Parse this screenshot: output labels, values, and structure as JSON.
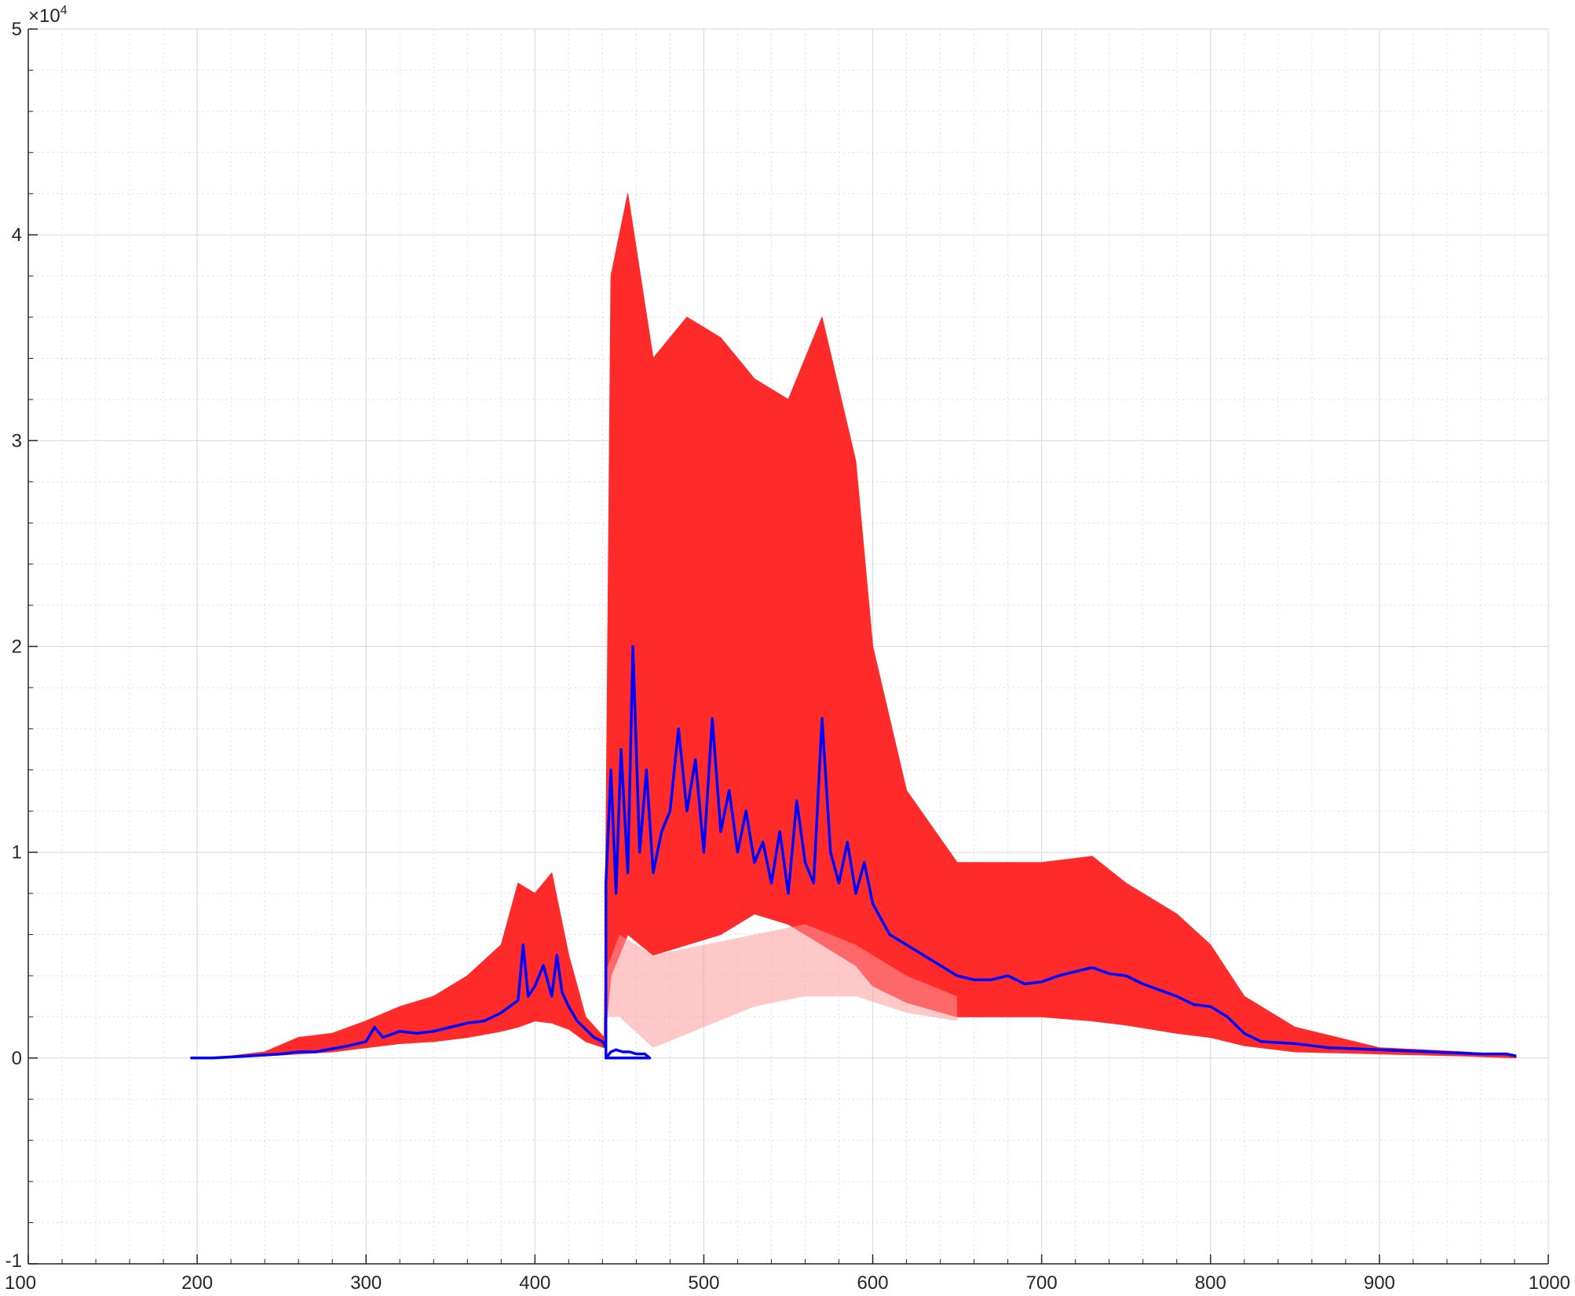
{
  "chart_data": {
    "type": "line",
    "title": "",
    "xlabel": "",
    "ylabel": "",
    "xlim": [
      100,
      1000
    ],
    "ylim": [
      -1,
      5
    ],
    "y_scale_exponent_label": "×10",
    "y_scale_exponent": "4",
    "x_ticks": [
      "100",
      "200",
      "300",
      "400",
      "500",
      "600",
      "700",
      "800",
      "900",
      "1000"
    ],
    "y_ticks": [
      "-1",
      "0",
      "1",
      "2",
      "3",
      "4",
      "5"
    ],
    "grid": true,
    "minor_grid": true,
    "legend": "none",
    "colors": {
      "envelope": "#ff2a2a",
      "envelope_faint": "#ff9a9a",
      "mean_line": "#0000ff",
      "grid": "#dcdcdc",
      "axis": "#262626"
    },
    "series": [
      {
        "kind": "envelope",
        "x": [
          196,
          220,
          240,
          260,
          280,
          300,
          320,
          340,
          360,
          380,
          390,
          400,
          410,
          420,
          430,
          441,
          445,
          455,
          470,
          490,
          510,
          530,
          550,
          570,
          590,
          600,
          620,
          650,
          700,
          730,
          750,
          780,
          800,
          820,
          850,
          900,
          950,
          981
        ],
        "lower": [
          0.0,
          0.0,
          0.01,
          0.02,
          0.03,
          0.05,
          0.07,
          0.08,
          0.1,
          0.13,
          0.15,
          0.18,
          0.17,
          0.14,
          0.08,
          0.05,
          0.4,
          0.6,
          0.5,
          0.55,
          0.6,
          0.7,
          0.65,
          0.55,
          0.45,
          0.35,
          0.27,
          0.2,
          0.2,
          0.18,
          0.16,
          0.12,
          0.1,
          0.06,
          0.03,
          0.02,
          0.01,
          0.0
        ],
        "upper": [
          0.0,
          0.01,
          0.03,
          0.1,
          0.12,
          0.18,
          0.25,
          0.3,
          0.4,
          0.55,
          0.85,
          0.8,
          0.9,
          0.5,
          0.2,
          0.1,
          3.8,
          4.2,
          3.4,
          3.6,
          3.5,
          3.3,
          3.2,
          3.6,
          2.9,
          2.0,
          1.3,
          0.95,
          0.95,
          0.98,
          0.85,
          0.7,
          0.55,
          0.3,
          0.15,
          0.05,
          0.03,
          0.01
        ]
      },
      {
        "kind": "envelope_faint",
        "x": [
          441,
          450,
          470,
          500,
          530,
          560,
          590,
          620,
          650
        ],
        "lower": [
          0.2,
          0.2,
          0.05,
          0.15,
          0.25,
          0.3,
          0.3,
          0.22,
          0.18
        ],
        "upper": [
          0.4,
          0.6,
          0.5,
          0.55,
          0.6,
          0.65,
          0.55,
          0.4,
          0.3
        ]
      },
      {
        "kind": "mean",
        "x": [
          196,
          210,
          230,
          250,
          260,
          270,
          290,
          300,
          305,
          310,
          320,
          330,
          340,
          350,
          360,
          370,
          380,
          390,
          393,
          396,
          400,
          405,
          410,
          413,
          416,
          420,
          425,
          430,
          435,
          440,
          442,
          442,
          445,
          448,
          452,
          456,
          460,
          465,
          468,
          468,
          442,
          442,
          445,
          448,
          451,
          455,
          458,
          462,
          466,
          470,
          475,
          480,
          485,
          490,
          495,
          500,
          505,
          510,
          515,
          520,
          525,
          530,
          535,
          540,
          545,
          550,
          555,
          560,
          565,
          570,
          575,
          580,
          585,
          590,
          595,
          600,
          610,
          620,
          630,
          640,
          650,
          660,
          670,
          680,
          690,
          700,
          710,
          720,
          730,
          740,
          750,
          760,
          770,
          780,
          790,
          800,
          810,
          820,
          830,
          850,
          870,
          900,
          930,
          960,
          975,
          981
        ],
        "y": [
          0.0,
          0.0,
          0.01,
          0.02,
          0.03,
          0.03,
          0.06,
          0.08,
          0.15,
          0.1,
          0.13,
          0.12,
          0.13,
          0.15,
          0.17,
          0.18,
          0.22,
          0.28,
          0.55,
          0.3,
          0.35,
          0.45,
          0.3,
          0.5,
          0.32,
          0.25,
          0.18,
          0.14,
          0.1,
          0.08,
          0.05,
          0.0,
          0.03,
          0.04,
          0.03,
          0.03,
          0.02,
          0.02,
          0.0,
          0.0,
          0.0,
          0.85,
          1.4,
          0.8,
          1.5,
          0.9,
          2.0,
          1.0,
          1.4,
          0.9,
          1.1,
          1.2,
          1.6,
          1.2,
          1.45,
          1.0,
          1.65,
          1.1,
          1.3,
          1.0,
          1.2,
          0.95,
          1.05,
          0.85,
          1.1,
          0.8,
          1.25,
          0.95,
          0.85,
          1.65,
          1.0,
          0.85,
          1.05,
          0.8,
          0.95,
          0.75,
          0.6,
          0.55,
          0.5,
          0.45,
          0.4,
          0.38,
          0.38,
          0.4,
          0.36,
          0.37,
          0.4,
          0.42,
          0.44,
          0.41,
          0.4,
          0.36,
          0.33,
          0.3,
          0.26,
          0.25,
          0.2,
          0.12,
          0.08,
          0.07,
          0.05,
          0.04,
          0.03,
          0.02,
          0.02,
          0.01
        ]
      }
    ]
  }
}
